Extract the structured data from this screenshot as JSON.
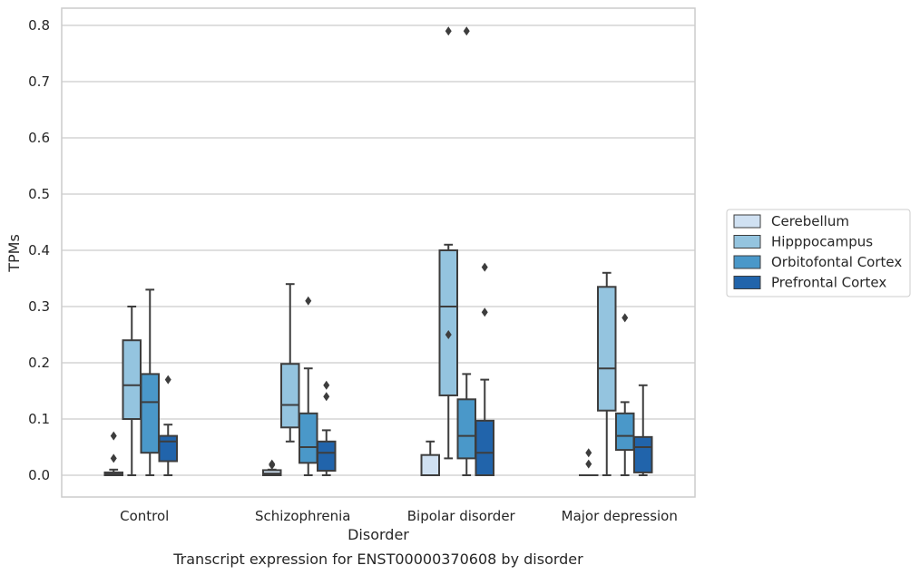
{
  "chart_data": {
    "type": "box",
    "title": "",
    "caption": "Transcript expression for ENST00000370608 by disorder",
    "xlabel": "Disorder",
    "ylabel": "TPMs",
    "ylim": [
      -0.04,
      0.83
    ],
    "yticks": [
      0.0,
      0.1,
      0.2,
      0.3,
      0.4,
      0.5,
      0.6,
      0.7,
      0.8
    ],
    "ytick_labels": [
      "0.0",
      "0.1",
      "0.2",
      "0.3",
      "0.4",
      "0.5",
      "0.6",
      "0.7",
      "0.8"
    ],
    "grid": "horizontal",
    "legend_position": "right",
    "categories": [
      "Control",
      "Schizophrenia",
      "Bipolar disorder",
      "Major depression"
    ],
    "series": [
      {
        "name": "Cerebellum",
        "color": "#d0e1f2",
        "boxes": [
          {
            "whislo": 0.0,
            "q1": 0.0,
            "med": 0.002,
            "q3": 0.005,
            "whishi": 0.01,
            "fliers": [
              0.03,
              0.07
            ]
          },
          {
            "whislo": 0.0,
            "q1": 0.0,
            "med": 0.003,
            "q3": 0.009,
            "whishi": 0.01,
            "fliers": [
              0.02,
              0.018
            ]
          },
          {
            "whislo": 0.0,
            "q1": 0.0,
            "med": 0.0,
            "q3": 0.036,
            "whishi": 0.06,
            "fliers": []
          },
          {
            "whislo": 0.0,
            "q1": 0.0,
            "med": 0.0,
            "q3": 0.0,
            "whishi": 0.0,
            "fliers": [
              0.02,
              0.04
            ]
          }
        ]
      },
      {
        "name": "Hipppocampus",
        "color": "#94c4df",
        "boxes": [
          {
            "whislo": 0.0,
            "q1": 0.1,
            "med": 0.16,
            "q3": 0.24,
            "whishi": 0.3,
            "fliers": []
          },
          {
            "whislo": 0.06,
            "q1": 0.085,
            "med": 0.125,
            "q3": 0.198,
            "whishi": 0.34,
            "fliers": []
          },
          {
            "whislo": 0.03,
            "q1": 0.142,
            "med": 0.3,
            "q3": 0.4,
            "whishi": 0.41,
            "fliers": [
              0.25,
              0.79
            ]
          },
          {
            "whislo": 0.0,
            "q1": 0.115,
            "med": 0.19,
            "q3": 0.335,
            "whishi": 0.36,
            "fliers": []
          }
        ]
      },
      {
        "name": "Orbitofontal Cortex",
        "color": "#4a98c9",
        "boxes": [
          {
            "whislo": 0.0,
            "q1": 0.04,
            "med": 0.13,
            "q3": 0.18,
            "whishi": 0.33,
            "fliers": []
          },
          {
            "whislo": 0.0,
            "q1": 0.022,
            "med": 0.05,
            "q3": 0.11,
            "whishi": 0.19,
            "fliers": [
              0.31
            ]
          },
          {
            "whislo": 0.0,
            "q1": 0.03,
            "med": 0.07,
            "q3": 0.135,
            "whishi": 0.18,
            "fliers": [
              0.79
            ]
          },
          {
            "whislo": 0.0,
            "q1": 0.045,
            "med": 0.07,
            "q3": 0.11,
            "whishi": 0.13,
            "fliers": [
              0.28
            ]
          }
        ]
      },
      {
        "name": "Prefrontal Cortex",
        "color": "#2164ab",
        "boxes": [
          {
            "whislo": 0.0,
            "q1": 0.025,
            "med": 0.06,
            "q3": 0.07,
            "whishi": 0.09,
            "fliers": [
              0.17
            ]
          },
          {
            "whislo": 0.0,
            "q1": 0.008,
            "med": 0.04,
            "q3": 0.06,
            "whishi": 0.08,
            "fliers": [
              0.14,
              0.16
            ]
          },
          {
            "whislo": 0.0,
            "q1": 0.0,
            "med": 0.04,
            "q3": 0.097,
            "whishi": 0.17,
            "fliers": [
              0.29,
              0.37
            ]
          },
          {
            "whislo": 0.0,
            "q1": 0.005,
            "med": 0.05,
            "q3": 0.068,
            "whishi": 0.16,
            "fliers": []
          }
        ]
      }
    ]
  }
}
